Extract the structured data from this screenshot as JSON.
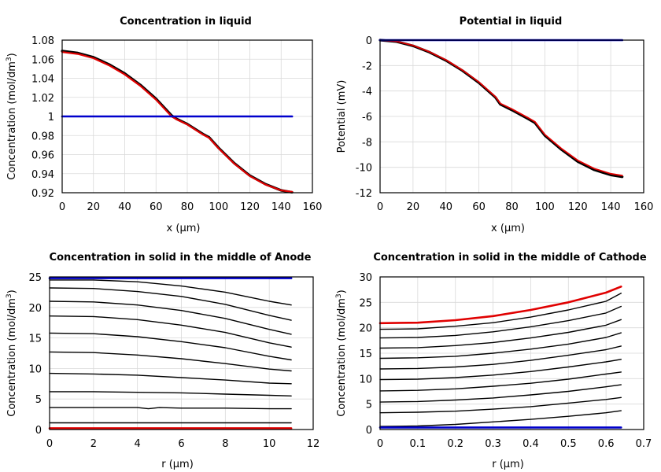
{
  "chart_data": [
    {
      "type": "line",
      "title": "Concentration in liquid",
      "xlabel": "x (µm)",
      "ylabel_main": "Concentration (mol/dm",
      "ylabel_sup": "3",
      "ylabel_tail": ")",
      "xlim": [
        0,
        160
      ],
      "ylim": [
        0.92,
        1.08
      ],
      "xticks": [
        "0",
        "20",
        "40",
        "60",
        "80",
        "100",
        "120",
        "140",
        "160"
      ],
      "yticks": [
        "0.92",
        "0.94",
        "0.96",
        "0.98",
        "1",
        "1.02",
        "1.04",
        "1.06",
        "1.08"
      ],
      "grid": true,
      "series": [
        {
          "color": "#000000",
          "width": 3.2,
          "x": [
            0,
            10,
            20,
            30,
            40,
            50,
            60,
            70,
            73,
            80,
            90,
            94,
            100,
            110,
            120,
            130,
            140,
            147
          ],
          "y": [
            1.0685,
            1.0665,
            1.062,
            1.0545,
            1.045,
            1.033,
            1.0185,
            1.001,
            0.9975,
            0.992,
            0.9815,
            0.978,
            0.967,
            0.951,
            0.938,
            0.929,
            0.9225,
            0.9205
          ]
        },
        {
          "color": "#e00000",
          "width": 2.2,
          "x": [
            0,
            10,
            20,
            30,
            40,
            50,
            60,
            70,
            73,
            80,
            90,
            94,
            100,
            110,
            120,
            130,
            140,
            147
          ],
          "y": [
            1.0675,
            1.0655,
            1.061,
            1.0535,
            1.044,
            1.032,
            1.0175,
            1.0,
            0.997,
            0.9915,
            0.981,
            0.9775,
            0.9665,
            0.9505,
            0.9375,
            0.9285,
            0.9225,
            0.921
          ]
        },
        {
          "color": "#0000cc",
          "width": 2.6,
          "x": [
            0,
            147
          ],
          "y": [
            1.0,
            1.0
          ]
        }
      ]
    },
    {
      "type": "line",
      "title": "Potential in liquid",
      "xlabel": "x (µm)",
      "ylabel_main": "Potential (mV)",
      "ylabel_sup": "",
      "ylabel_tail": "",
      "xlim": [
        0,
        160
      ],
      "ylim": [
        -12,
        0
      ],
      "xticks": [
        "0",
        "20",
        "40",
        "60",
        "80",
        "100",
        "120",
        "140",
        "160"
      ],
      "yticks": [
        "-12",
        "-10",
        "-8",
        "-6",
        "-4",
        "-2",
        "0"
      ],
      "grid": true,
      "series": [
        {
          "color": "#000000",
          "width": 3.2,
          "x": [
            0,
            10,
            20,
            30,
            40,
            50,
            60,
            70,
            73,
            80,
            90,
            94,
            100,
            110,
            120,
            130,
            140,
            147
          ],
          "y": [
            0,
            -0.12,
            -0.45,
            -0.95,
            -1.6,
            -2.4,
            -3.35,
            -4.5,
            -5.05,
            -5.5,
            -6.2,
            -6.5,
            -7.5,
            -8.6,
            -9.55,
            -10.2,
            -10.6,
            -10.75
          ]
        },
        {
          "color": "#e00000",
          "width": 1.8,
          "x": [
            0,
            10,
            20,
            30,
            40,
            50,
            60,
            70,
            73,
            80,
            90,
            94,
            100,
            110,
            120,
            130,
            140,
            147
          ],
          "y": [
            0,
            -0.1,
            -0.42,
            -0.92,
            -1.56,
            -2.36,
            -3.3,
            -4.45,
            -4.98,
            -5.42,
            -6.12,
            -6.42,
            -7.42,
            -8.52,
            -9.46,
            -10.1,
            -10.5,
            -10.65
          ]
        },
        {
          "color": "#0000cc",
          "width": 2.6,
          "x": [
            0,
            147
          ],
          "y": [
            0,
            0
          ]
        }
      ]
    },
    {
      "type": "line",
      "title": "Concentration in solid in the middle of Anode",
      "xlabel": "r (µm)",
      "ylabel_main": "Concentration (mol/dm",
      "ylabel_sup": "3",
      "ylabel_tail": ")",
      "xlim": [
        0,
        12
      ],
      "ylim": [
        0,
        25
      ],
      "xticks": [
        "0",
        "2",
        "4",
        "6",
        "8",
        "10",
        "12"
      ],
      "yticks": [
        "0",
        "5",
        "10",
        "15",
        "20",
        "25"
      ],
      "grid": true,
      "series": [
        {
          "color": "#000000",
          "width": 1.4,
          "x": [
            0,
            2,
            4,
            6,
            8,
            10,
            11
          ],
          "y": [
            24.5,
            24.5,
            24.2,
            23.5,
            22.5,
            21.0,
            20.4
          ]
        },
        {
          "color": "#000000",
          "width": 1.4,
          "x": [
            0,
            2,
            4,
            6,
            8,
            10,
            11
          ],
          "y": [
            23.2,
            23.1,
            22.6,
            21.8,
            20.5,
            18.7,
            17.9
          ]
        },
        {
          "color": "#000000",
          "width": 1.4,
          "x": [
            0,
            2,
            4,
            6,
            8,
            10,
            11
          ],
          "y": [
            21.0,
            20.9,
            20.4,
            19.5,
            18.2,
            16.4,
            15.6
          ]
        },
        {
          "color": "#000000",
          "width": 1.4,
          "x": [
            0,
            2,
            4,
            6,
            8,
            10,
            11
          ],
          "y": [
            18.6,
            18.5,
            18.0,
            17.1,
            15.9,
            14.2,
            13.5
          ]
        },
        {
          "color": "#000000",
          "width": 1.4,
          "x": [
            0,
            2,
            4,
            6,
            8,
            10,
            11
          ],
          "y": [
            15.8,
            15.7,
            15.2,
            14.4,
            13.4,
            12.0,
            11.4
          ]
        },
        {
          "color": "#000000",
          "width": 1.4,
          "x": [
            0,
            2,
            4,
            6,
            8,
            10,
            11
          ],
          "y": [
            12.7,
            12.6,
            12.2,
            11.6,
            10.8,
            9.9,
            9.6
          ]
        },
        {
          "color": "#000000",
          "width": 1.4,
          "x": [
            0,
            2,
            4,
            6,
            8,
            10,
            11
          ],
          "y": [
            9.2,
            9.1,
            8.9,
            8.5,
            8.1,
            7.6,
            7.5
          ]
        },
        {
          "color": "#000000",
          "width": 1.4,
          "x": [
            0,
            2,
            4,
            6,
            8,
            10,
            11
          ],
          "y": [
            6.2,
            6.2,
            6.1,
            6.0,
            5.8,
            5.6,
            5.5
          ]
        },
        {
          "color": "#000000",
          "width": 1.4,
          "x": [
            0,
            2,
            4,
            4.5,
            5,
            6,
            8,
            10,
            11
          ],
          "y": [
            3.6,
            3.6,
            3.6,
            3.4,
            3.6,
            3.5,
            3.5,
            3.4,
            3.4
          ]
        },
        {
          "color": "#000000",
          "width": 1.4,
          "x": [
            0,
            11
          ],
          "y": [
            1.1,
            1.1
          ]
        },
        {
          "color": "#0000cc",
          "width": 2.6,
          "x": [
            0,
            11
          ],
          "y": [
            24.8,
            24.8
          ]
        },
        {
          "color": "#e00000",
          "width": 2.6,
          "x": [
            0,
            11
          ],
          "y": [
            0.2,
            0.2
          ]
        }
      ]
    },
    {
      "type": "line",
      "title": "Concentration in solid in the middle of Cathode",
      "xlabel": "r (µm)",
      "ylabel_main": "Concentration (mol/dm",
      "ylabel_sup": "3",
      "ylabel_tail": ")",
      "xlim": [
        0,
        0.7
      ],
      "ylim": [
        0,
        30
      ],
      "xticks": [
        "0",
        "0.1",
        "0.2",
        "0.3",
        "0.4",
        "0.5",
        "0.6",
        "0.7"
      ],
      "yticks": [
        "0",
        "5",
        "10",
        "15",
        "20",
        "25",
        "30"
      ],
      "grid": true,
      "series": [
        {
          "color": "#000000",
          "width": 1.4,
          "x": [
            0,
            0.1,
            0.2,
            0.3,
            0.4,
            0.5,
            0.6,
            0.64
          ],
          "y": [
            0.6,
            0.7,
            1.0,
            1.5,
            2.0,
            2.6,
            3.3,
            3.7
          ]
        },
        {
          "color": "#000000",
          "width": 1.4,
          "x": [
            0,
            0.1,
            0.2,
            0.3,
            0.4,
            0.5,
            0.6,
            0.64
          ],
          "y": [
            3.3,
            3.4,
            3.6,
            4.0,
            4.5,
            5.2,
            5.9,
            6.3
          ]
        },
        {
          "color": "#000000",
          "width": 1.4,
          "x": [
            0,
            0.1,
            0.2,
            0.3,
            0.4,
            0.5,
            0.6,
            0.64
          ],
          "y": [
            5.4,
            5.5,
            5.8,
            6.2,
            6.8,
            7.5,
            8.4,
            8.8
          ]
        },
        {
          "color": "#000000",
          "width": 1.4,
          "x": [
            0,
            0.1,
            0.2,
            0.3,
            0.4,
            0.5,
            0.6,
            0.64
          ],
          "y": [
            7.6,
            7.7,
            8.0,
            8.5,
            9.1,
            9.9,
            10.9,
            11.3
          ]
        },
        {
          "color": "#000000",
          "width": 1.4,
          "x": [
            0,
            0.1,
            0.2,
            0.3,
            0.4,
            0.5,
            0.6,
            0.64
          ],
          "y": [
            9.8,
            9.9,
            10.2,
            10.7,
            11.4,
            12.3,
            13.3,
            13.8
          ]
        },
        {
          "color": "#000000",
          "width": 1.4,
          "x": [
            0,
            0.1,
            0.2,
            0.3,
            0.4,
            0.5,
            0.6,
            0.64
          ],
          "y": [
            11.9,
            12.0,
            12.3,
            12.8,
            13.6,
            14.6,
            15.7,
            16.4
          ]
        },
        {
          "color": "#000000",
          "width": 1.4,
          "x": [
            0,
            0.1,
            0.2,
            0.3,
            0.4,
            0.5,
            0.6,
            0.64
          ],
          "y": [
            14.0,
            14.1,
            14.4,
            15.0,
            15.8,
            16.8,
            18.1,
            19.0
          ]
        },
        {
          "color": "#000000",
          "width": 1.4,
          "x": [
            0,
            0.1,
            0.2,
            0.3,
            0.4,
            0.5,
            0.6,
            0.64
          ],
          "y": [
            16.0,
            16.1,
            16.5,
            17.1,
            18.0,
            19.1,
            20.5,
            21.6
          ]
        },
        {
          "color": "#000000",
          "width": 1.4,
          "x": [
            0,
            0.1,
            0.2,
            0.3,
            0.4,
            0.5,
            0.6,
            0.64
          ],
          "y": [
            18.0,
            18.1,
            18.5,
            19.2,
            20.2,
            21.4,
            22.9,
            24.2
          ]
        },
        {
          "color": "#000000",
          "width": 1.4,
          "x": [
            0,
            0.1,
            0.2,
            0.3,
            0.4,
            0.5,
            0.6,
            0.64
          ],
          "y": [
            19.7,
            19.8,
            20.3,
            21.0,
            22.1,
            23.5,
            25.2,
            26.8
          ]
        },
        {
          "color": "#e00000",
          "width": 2.6,
          "x": [
            0,
            0.1,
            0.2,
            0.3,
            0.4,
            0.5,
            0.6,
            0.64
          ],
          "y": [
            20.9,
            21.0,
            21.5,
            22.3,
            23.5,
            25.0,
            26.9,
            28.1
          ]
        },
        {
          "color": "#0000cc",
          "width": 2.6,
          "x": [
            0,
            0.64
          ],
          "y": [
            0.4,
            0.4
          ]
        }
      ]
    }
  ]
}
